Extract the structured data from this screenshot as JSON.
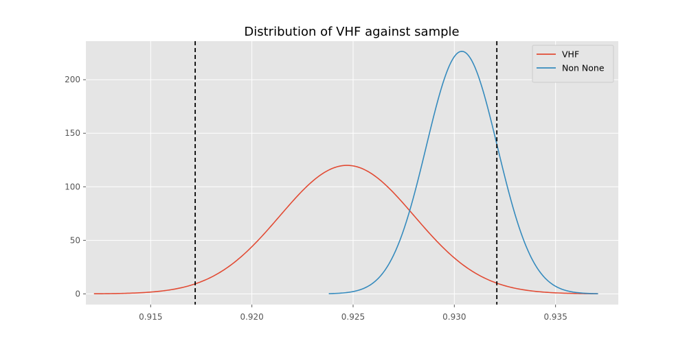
{
  "chart_data": {
    "type": "line",
    "title": "Distribution of VHF against sample",
    "xlabel": "",
    "ylabel": "",
    "xlim": [
      0.9118,
      0.9381
    ],
    "ylim": [
      -10,
      236
    ],
    "xticks": [
      0.915,
      0.92,
      0.925,
      0.93,
      0.935
    ],
    "xtick_labels": [
      "0.915",
      "0.920",
      "0.925",
      "0.930",
      "0.935"
    ],
    "yticks": [
      0,
      50,
      100,
      150,
      200
    ],
    "ytick_labels": [
      "0",
      "50",
      "100",
      "150",
      "200"
    ],
    "grid": true,
    "legend_position": "upper-right",
    "series": [
      {
        "name": "VHF",
        "color": "#e24a33",
        "mean": 0.9247,
        "std": 0.00332,
        "x_range": [
          0.9122,
          0.9371
        ],
        "peak": 120
      },
      {
        "name": "Non None",
        "color": "#348abd",
        "mean": 0.93037,
        "std": 0.00176,
        "x_range": [
          0.9238,
          0.9371
        ],
        "peak": 226.5
      }
    ],
    "vlines": [
      {
        "x": 0.9172,
        "style": "dashed",
        "color": "#000000"
      },
      {
        "x": 0.9321,
        "style": "dashed",
        "color": "#000000"
      }
    ]
  }
}
